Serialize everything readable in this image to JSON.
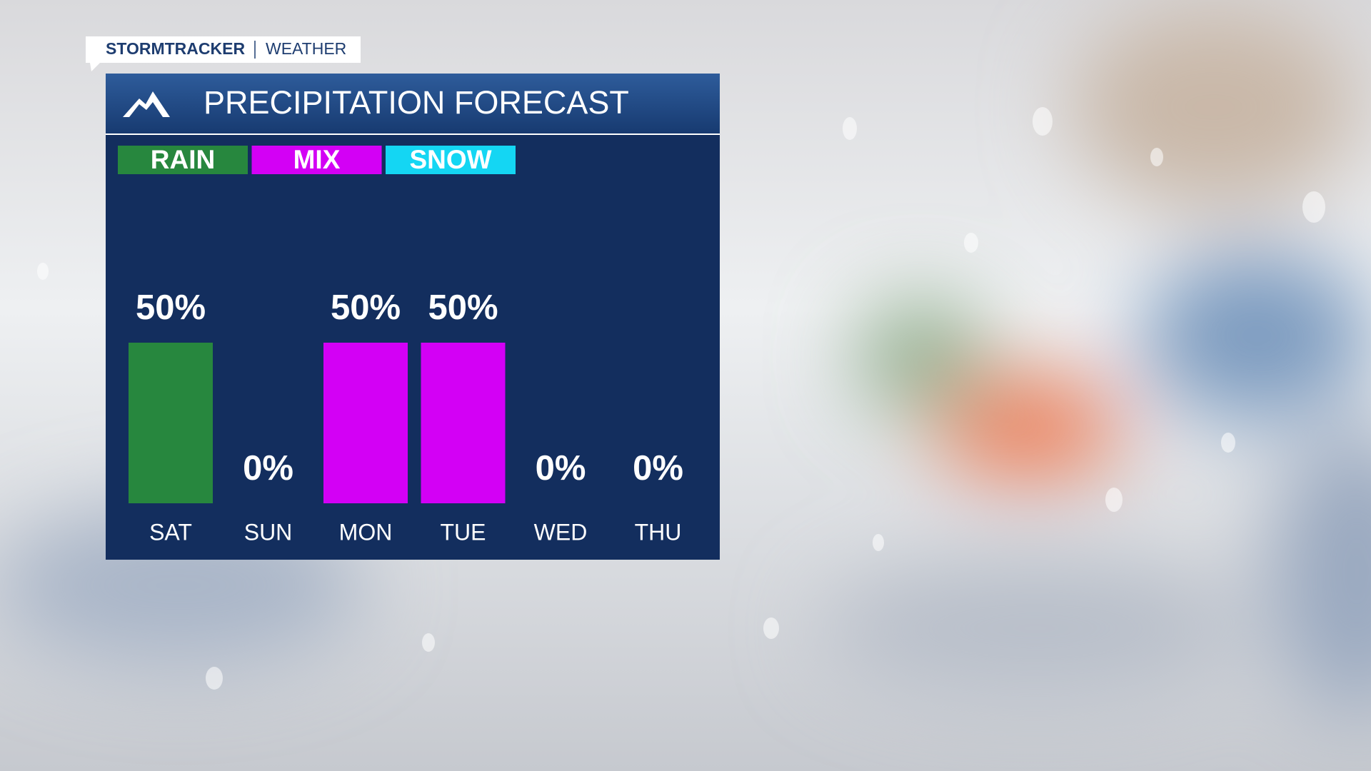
{
  "brand": "STORMTRACKER",
  "section": "WEATHER",
  "chart_data": {
    "type": "bar",
    "title": "PRECIPITATION FORECAST",
    "legend": [
      {
        "name": "RAIN",
        "color": "#27873e"
      },
      {
        "name": "MIX",
        "color": "#d300f5"
      },
      {
        "name": "SNOW",
        "color": "#14d6f3"
      }
    ],
    "categories": [
      "SAT",
      "SUN",
      "MON",
      "TUE",
      "WED",
      "THU"
    ],
    "values": [
      50,
      0,
      50,
      50,
      0,
      0
    ],
    "value_labels": [
      "50%",
      "0%",
      "50%",
      "50%",
      "0%",
      "0%"
    ],
    "colors": [
      "#27873e",
      null,
      "#d300f5",
      "#d300f5",
      null,
      null
    ],
    "ylim": [
      0,
      100
    ]
  }
}
